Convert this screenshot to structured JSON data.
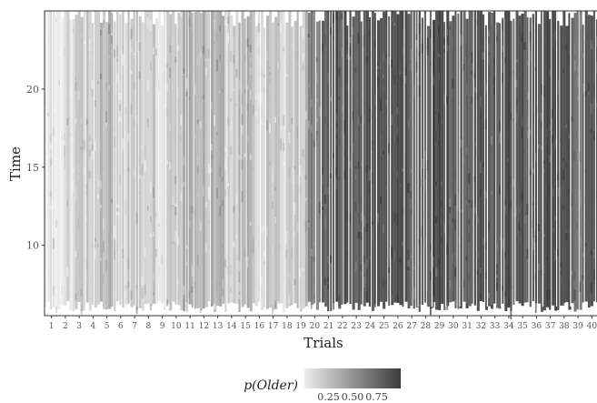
{
  "chart_data": {
    "type": "heatmap",
    "title": "",
    "xlabel": "Trials",
    "ylabel": "Time",
    "x_categories": [
      "1",
      "2",
      "3",
      "4",
      "5",
      "6",
      "7",
      "8",
      "9",
      "10",
      "11",
      "12",
      "13",
      "14",
      "15",
      "16",
      "17",
      "18",
      "19",
      "20",
      "21",
      "22",
      "23",
      "24",
      "25",
      "26",
      "27",
      "28",
      "29",
      "30",
      "31",
      "32",
      "33",
      "34",
      "35",
      "36",
      "37",
      "38",
      "39",
      "40"
    ],
    "y_ticks": [
      10,
      15,
      20
    ],
    "ylim": [
      5.5,
      25
    ],
    "color_scale": {
      "label": "p(Older)",
      "range": [
        0,
        1
      ],
      "ticks": [
        "0.25",
        "0.50",
        "0.75"
      ],
      "low_color": "#ececec",
      "high_color": "#3c3c3c"
    },
    "trial_mean_p_older": [
      0.12,
      0.1,
      0.15,
      0.18,
      0.3,
      0.14,
      0.22,
      0.2,
      0.12,
      0.18,
      0.35,
      0.28,
      0.32,
      0.1,
      0.4,
      0.2,
      0.16,
      0.15,
      0.22,
      0.6,
      0.8,
      0.85,
      0.85,
      0.85,
      0.85,
      0.85,
      0.85,
      0.85,
      0.85,
      0.85,
      0.85,
      0.85,
      0.85,
      0.85,
      0.85,
      0.85,
      0.85,
      0.85,
      0.7,
      0.85
    ],
    "legend_position": "bottom"
  }
}
